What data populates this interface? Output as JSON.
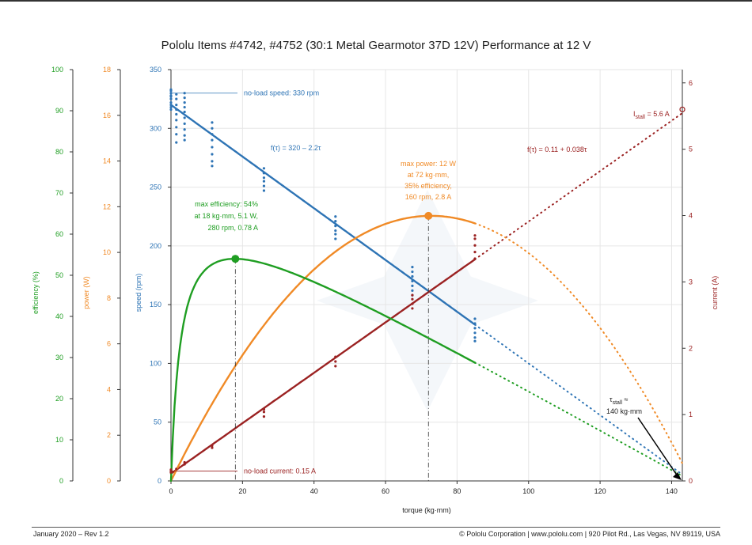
{
  "colors": {
    "efficiency": "#1f9e22",
    "power": "#f08a26",
    "speed": "#2e74b5",
    "current": "#9b2222",
    "text": "#222222"
  },
  "footer": {
    "left": "January 2020 – Rev 1.2",
    "right": "© Pololu Corporation | www.pololu.com | 920 Pilot Rd., Las Vegas, NV 89119, USA"
  },
  "chart_data": {
    "type": "line",
    "title": "Pololu Items #4742, #4752 (30:1 Metal Gearmotor 37D 12V) Performance at 12 V",
    "xlabel": "torque (kg·mm)",
    "x_ticks": [
      0,
      20,
      40,
      60,
      80,
      100,
      120,
      140
    ],
    "xlim": [
      0,
      143
    ],
    "grid": true,
    "axes": {
      "efficiency": {
        "label": "efficiency (%)",
        "ticks": [
          0,
          10,
          20,
          30,
          40,
          50,
          60,
          70,
          80,
          90,
          100
        ],
        "range": [
          0,
          100
        ]
      },
      "power": {
        "label": "power (W)",
        "ticks": [
          0,
          2,
          4,
          6,
          8,
          10,
          12,
          14,
          16,
          18
        ],
        "range": [
          0,
          18
        ]
      },
      "speed": {
        "label": "speed (rpm)",
        "ticks": [
          0,
          50,
          100,
          150,
          200,
          250,
          300,
          350
        ],
        "range": [
          0,
          350
        ]
      },
      "current": {
        "label": "current (A)",
        "ticks": [
          0,
          1,
          2,
          3,
          4,
          5,
          6
        ],
        "range": [
          0,
          6.2
        ]
      }
    },
    "series": [
      {
        "name": "speed",
        "axis": "speed",
        "fit": "f(τ) = 320 – 2.2τ",
        "solid_x": [
          0,
          85
        ],
        "dotted_x": [
          85,
          143
        ]
      },
      {
        "name": "current",
        "axis": "current",
        "fit": "f(τ) = 0.11 + 0.038τ",
        "solid_x": [
          0,
          85
        ],
        "dotted_x": [
          85,
          143
        ]
      },
      {
        "name": "power",
        "axis": "power",
        "solid_x": [
          0,
          85
        ],
        "dotted_x": [
          85,
          143
        ]
      },
      {
        "name": "efficiency",
        "axis": "efficiency",
        "solid_x": [
          0,
          85
        ],
        "dotted_x": [
          85,
          143
        ]
      }
    ],
    "speed_points": [
      [
        0,
        333
      ],
      [
        0,
        330
      ],
      [
        0,
        327
      ],
      [
        0,
        325
      ],
      [
        0,
        322
      ],
      [
        0,
        320
      ],
      [
        0,
        318
      ],
      [
        0,
        316
      ],
      [
        0,
        332
      ],
      [
        0,
        328
      ],
      [
        1.5,
        329
      ],
      [
        1.5,
        325
      ],
      [
        1.5,
        320
      ],
      [
        1.5,
        316
      ],
      [
        1.5,
        312
      ],
      [
        1.5,
        307
      ],
      [
        1.5,
        301
      ],
      [
        1.5,
        295
      ],
      [
        1.5,
        288
      ],
      [
        3.8,
        330
      ],
      [
        3.8,
        326
      ],
      [
        3.8,
        322
      ],
      [
        3.8,
        318
      ],
      [
        3.8,
        314
      ],
      [
        3.8,
        309
      ],
      [
        3.8,
        304
      ],
      [
        3.8,
        299
      ],
      [
        3.8,
        294
      ],
      [
        3.8,
        290
      ],
      [
        11.5,
        305
      ],
      [
        11.5,
        300
      ],
      [
        11.5,
        295
      ],
      [
        11.5,
        290
      ],
      [
        11.5,
        284
      ],
      [
        11.5,
        278
      ],
      [
        11.5,
        272
      ],
      [
        11.5,
        268
      ],
      [
        26,
        266
      ],
      [
        26,
        262
      ],
      [
        26,
        258
      ],
      [
        26,
        255
      ],
      [
        26,
        251
      ],
      [
        26,
        247
      ],
      [
        26,
        262
      ],
      [
        46,
        225
      ],
      [
        46,
        221
      ],
      [
        46,
        217
      ],
      [
        46,
        213
      ],
      [
        46,
        210
      ],
      [
        46,
        206
      ],
      [
        67.5,
        182
      ],
      [
        67.5,
        178
      ],
      [
        67.5,
        174
      ],
      [
        67.5,
        170
      ],
      [
        67.5,
        166
      ],
      [
        67.5,
        162
      ],
      [
        67.5,
        158
      ],
      [
        85,
        138
      ],
      [
        85,
        134
      ],
      [
        85,
        130
      ],
      [
        85,
        126
      ],
      [
        85,
        122
      ],
      [
        85,
        119
      ]
    ],
    "current_points": [
      [
        0,
        0.13
      ],
      [
        0,
        0.15
      ],
      [
        0,
        0.17
      ],
      [
        1.5,
        0.18
      ],
      [
        3.8,
        0.25
      ],
      [
        3.8,
        0.28
      ],
      [
        11.5,
        0.5
      ],
      [
        11.5,
        0.53
      ],
      [
        26,
        0.97
      ],
      [
        26,
        1.04
      ],
      [
        26,
        1.08
      ],
      [
        46,
        1.73
      ],
      [
        46,
        1.8
      ],
      [
        46,
        1.87
      ],
      [
        67.5,
        2.6
      ],
      [
        67.5,
        2.67
      ],
      [
        67.5,
        2.74
      ],
      [
        67.5,
        2.8
      ],
      [
        85,
        3.35
      ],
      [
        85,
        3.45
      ],
      [
        85,
        3.55
      ],
      [
        85,
        3.65
      ],
      [
        85,
        3.7
      ]
    ],
    "annotations": [
      {
        "key": "no_load_speed",
        "text": "no-load speed: 330 rpm",
        "color": "speed",
        "x": 0,
        "axis": "speed",
        "y": 330
      },
      {
        "key": "no_load_current",
        "text": "no-load current: 0.15 A",
        "color": "current",
        "x": 0,
        "axis": "current",
        "y": 0.15
      },
      {
        "key": "max_efficiency",
        "lines": [
          "max efficiency: 54%",
          "at 18 kg·mm, 5.1 W,",
          "280 rpm, 0.78 A"
        ],
        "color": "efficiency",
        "x": 18,
        "axis": "efficiency",
        "y": 54
      },
      {
        "key": "max_power",
        "lines": [
          "max power: 12 W",
          "at 72 kg·mm,",
          "35% efficiency,",
          "160 rpm, 2.8 A"
        ],
        "color": "power",
        "x": 72,
        "axis": "power",
        "y": 11.6
      },
      {
        "key": "stall_current",
        "text_prefix": "I",
        "text_sub": "stall",
        "text_suffix": " = 5.6 A",
        "color": "current",
        "x": 143,
        "axis": "current",
        "y": 5.6
      },
      {
        "key": "stall_torque",
        "text_prefix": "τ",
        "text_sub": "stall",
        "text_suffix": " ≈",
        "line2": "140 kg·mm",
        "color": "text",
        "x": 143
      }
    ]
  }
}
